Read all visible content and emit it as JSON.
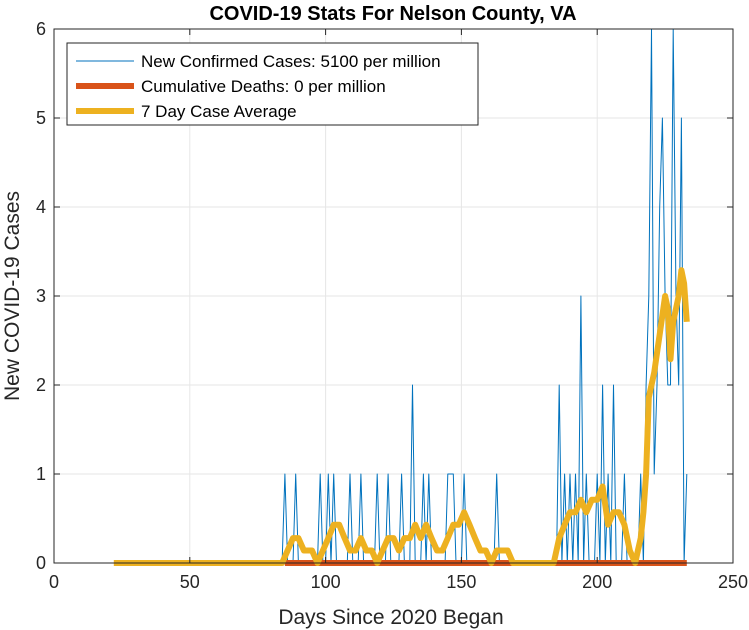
{
  "chart_data": {
    "type": "line",
    "title": "COVID-19 Stats For Nelson County, VA",
    "xlabel": "Days Since 2020 Began",
    "ylabel": "New COVID-19 Cases",
    "xlim": [
      0,
      250
    ],
    "ylim": [
      0,
      6
    ],
    "xticks": [
      0,
      50,
      100,
      150,
      200,
      250
    ],
    "yticks": [
      0,
      1,
      2,
      3,
      4,
      5,
      6
    ],
    "grid": true,
    "legend_position": "top-left",
    "series": [
      {
        "name": "New Confirmed Cases: 5100 per million",
        "color": "#0072BD",
        "style": "thin",
        "points": [
          [
            22,
            0
          ],
          [
            84,
            0
          ],
          [
            85,
            1
          ],
          [
            86,
            0
          ],
          [
            88,
            0
          ],
          [
            89,
            1
          ],
          [
            90,
            0
          ],
          [
            97,
            0
          ],
          [
            98,
            1
          ],
          [
            99,
            0
          ],
          [
            100,
            0
          ],
          [
            101,
            1
          ],
          [
            102,
            0
          ],
          [
            103,
            1
          ],
          [
            104,
            0
          ],
          [
            108,
            0
          ],
          [
            109,
            1
          ],
          [
            110,
            0
          ],
          [
            112,
            0
          ],
          [
            113,
            1
          ],
          [
            114,
            0
          ],
          [
            118,
            0
          ],
          [
            119,
            1
          ],
          [
            120,
            0
          ],
          [
            122,
            0
          ],
          [
            123,
            1
          ],
          [
            124,
            0
          ],
          [
            127,
            0
          ],
          [
            128,
            1
          ],
          [
            129,
            0
          ],
          [
            131,
            0
          ],
          [
            132,
            2
          ],
          [
            133,
            0
          ],
          [
            135,
            0
          ],
          [
            136,
            1
          ],
          [
            137,
            0
          ],
          [
            138,
            1
          ],
          [
            139,
            0
          ],
          [
            144,
            0
          ],
          [
            145,
            1
          ],
          [
            147,
            1
          ],
          [
            148,
            0
          ],
          [
            150,
            0
          ],
          [
            151,
            1
          ],
          [
            152,
            0
          ],
          [
            162,
            0
          ],
          [
            163,
            1
          ],
          [
            164,
            0
          ],
          [
            185,
            0
          ],
          [
            186,
            2
          ],
          [
            187,
            0
          ],
          [
            188,
            1
          ],
          [
            189,
            0
          ],
          [
            190,
            1
          ],
          [
            191,
            0
          ],
          [
            192,
            1
          ],
          [
            193,
            0
          ],
          [
            194,
            3
          ],
          [
            195,
            0
          ],
          [
            196,
            1
          ],
          [
            197,
            0
          ],
          [
            199,
            0
          ],
          [
            200,
            1
          ],
          [
            201,
            0
          ],
          [
            202,
            2
          ],
          [
            203,
            0
          ],
          [
            204,
            1
          ],
          [
            205,
            0
          ],
          [
            206,
            2
          ],
          [
            207,
            0
          ],
          [
            209,
            0
          ],
          [
            210,
            1
          ],
          [
            211,
            0
          ],
          [
            215,
            0
          ],
          [
            216,
            1
          ],
          [
            217,
            0
          ],
          [
            218,
            2
          ],
          [
            219,
            3
          ],
          [
            220,
            6
          ],
          [
            221,
            1
          ],
          [
            222,
            2
          ],
          [
            223,
            4
          ],
          [
            224,
            5
          ],
          [
            225,
            3
          ],
          [
            226,
            2
          ],
          [
            227,
            2
          ],
          [
            228,
            6
          ],
          [
            229,
            3
          ],
          [
            230,
            2
          ],
          [
            231,
            5
          ],
          [
            232,
            0
          ],
          [
            233,
            1
          ]
        ]
      },
      {
        "name": "Cumulative Deaths: 0 per million",
        "color": "#D95319",
        "style": "thick",
        "points": [
          [
            85,
            0
          ],
          [
            233,
            0
          ]
        ]
      },
      {
        "name": "7 Day Case Average",
        "color": "#EDB120",
        "style": "thick",
        "points": [
          [
            22,
            0
          ],
          [
            84,
            0
          ],
          [
            86,
            0.14
          ],
          [
            88,
            0.28
          ],
          [
            90,
            0.28
          ],
          [
            92,
            0.14
          ],
          [
            95,
            0.14
          ],
          [
            97,
            0
          ],
          [
            99,
            0.14
          ],
          [
            101,
            0.28
          ],
          [
            103,
            0.43
          ],
          [
            105,
            0.43
          ],
          [
            107,
            0.28
          ],
          [
            109,
            0.14
          ],
          [
            111,
            0.14
          ],
          [
            113,
            0.28
          ],
          [
            115,
            0.14
          ],
          [
            117,
            0.14
          ],
          [
            119,
            0
          ],
          [
            121,
            0.14
          ],
          [
            123,
            0.28
          ],
          [
            125,
            0.28
          ],
          [
            127,
            0.14
          ],
          [
            129,
            0.28
          ],
          [
            131,
            0.28
          ],
          [
            133,
            0.43
          ],
          [
            135,
            0.28
          ],
          [
            137,
            0.43
          ],
          [
            139,
            0.28
          ],
          [
            141,
            0.14
          ],
          [
            143,
            0.14
          ],
          [
            145,
            0.28
          ],
          [
            147,
            0.43
          ],
          [
            149,
            0.43
          ],
          [
            151,
            0.57
          ],
          [
            153,
            0.43
          ],
          [
            155,
            0.28
          ],
          [
            157,
            0.14
          ],
          [
            159,
            0.14
          ],
          [
            161,
            0
          ],
          [
            163,
            0.14
          ],
          [
            165,
            0.14
          ],
          [
            167,
            0.14
          ],
          [
            169,
            0
          ],
          [
            184,
            0
          ],
          [
            186,
            0.28
          ],
          [
            188,
            0.43
          ],
          [
            190,
            0.57
          ],
          [
            192,
            0.57
          ],
          [
            194,
            0.71
          ],
          [
            196,
            0.57
          ],
          [
            198,
            0.71
          ],
          [
            200,
            0.71
          ],
          [
            202,
            0.86
          ],
          [
            204,
            0.43
          ],
          [
            206,
            0.57
          ],
          [
            208,
            0.57
          ],
          [
            210,
            0.43
          ],
          [
            212,
            0.14
          ],
          [
            214,
            0
          ],
          [
            215,
            0.14
          ],
          [
            216,
            0.28
          ],
          [
            217,
            0.57
          ],
          [
            218,
            1
          ],
          [
            219,
            1.86
          ],
          [
            221,
            2.14
          ],
          [
            223,
            2.57
          ],
          [
            225,
            3
          ],
          [
            226,
            2.86
          ],
          [
            227,
            2.29
          ],
          [
            228,
            2.71
          ],
          [
            230,
            3
          ],
          [
            231,
            3.29
          ],
          [
            232,
            3.14
          ],
          [
            233,
            2.71
          ]
        ]
      }
    ]
  }
}
